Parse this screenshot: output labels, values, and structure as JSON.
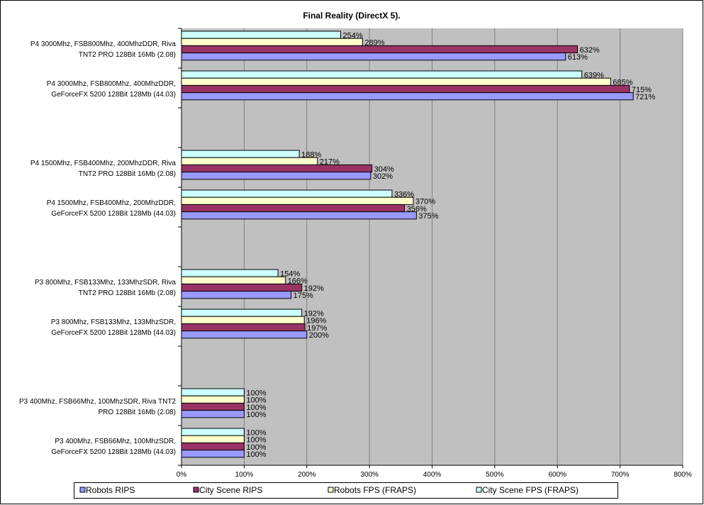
{
  "chart_data": {
    "type": "bar",
    "orientation": "horizontal",
    "title": "Final Reality (DirectX 5).",
    "xlabel": "",
    "ylabel": "",
    "xlim": [
      0,
      800
    ],
    "x_ticks": [
      "0%",
      "100%",
      "200%",
      "300%",
      "400%",
      "500%",
      "600%",
      "700%",
      "800%"
    ],
    "grid": true,
    "legend_position": "bottom",
    "categories": [
      [
        "P4 3000Mhz, FSB800Mhz, 400MhzDDR, Riva",
        "TNT2 PRO 128Bit 16Mb (2.08)"
      ],
      [
        "P4 3000Mhz, FSB800Mhz, 400MhzDDR,",
        "GeForceFX 5200 128Bit 128Mb (44.03)"
      ],
      null,
      [
        "P4 1500Mhz, FSB400Mhz, 200MhzDDR, Riva",
        "TNT2 PRO 128Bit 16Mb (2.08)"
      ],
      [
        "P4 1500Mhz, FSB400Mhz, 200MhzDDR,",
        "GeForceFX 5200 128Bit 128Mb (44.03)"
      ],
      null,
      [
        "P3 800Mhz, FSB133Mhz, 133MhzSDR, Riva",
        "TNT2 PRO 128Bit 16Mb (2.08)"
      ],
      [
        "P3 800Mhz, FSB133Mhz, 133MhzSDR,",
        "GeForceFX 5200 128Bit 128Mb (44.03)"
      ],
      null,
      [
        "P3 400Mhz, FSB66Mhz, 100MhzSDR, Riva TNT2",
        "PRO 128Bit 16Mb (2.08)"
      ],
      [
        "P3 400Mhz, FSB66Mhz, 100MhzSDR,",
        "GeForceFX 5200 128Bit 128Mb (44.03)"
      ]
    ],
    "series": [
      {
        "name": "Robots RIPS",
        "color": "#9999FF",
        "values": [
          613,
          721,
          null,
          302,
          375,
          null,
          175,
          200,
          null,
          100,
          100
        ]
      },
      {
        "name": "City Scene RIPS",
        "color": "#993366",
        "values": [
          632,
          715,
          null,
          304,
          356,
          null,
          192,
          197,
          null,
          100,
          100
        ]
      },
      {
        "name": "Robots FPS (FRAPS)",
        "color": "#FFFFCC",
        "values": [
          289,
          685,
          null,
          217,
          370,
          null,
          166,
          196,
          null,
          100,
          100
        ]
      },
      {
        "name": "City Scene FPS (FRAPS)",
        "color": "#CCFFFF",
        "values": [
          254,
          639,
          null,
          188,
          336,
          null,
          154,
          192,
          null,
          100,
          100
        ]
      }
    ],
    "value_suffix": "%",
    "plot_background": "#C0C0C0"
  }
}
